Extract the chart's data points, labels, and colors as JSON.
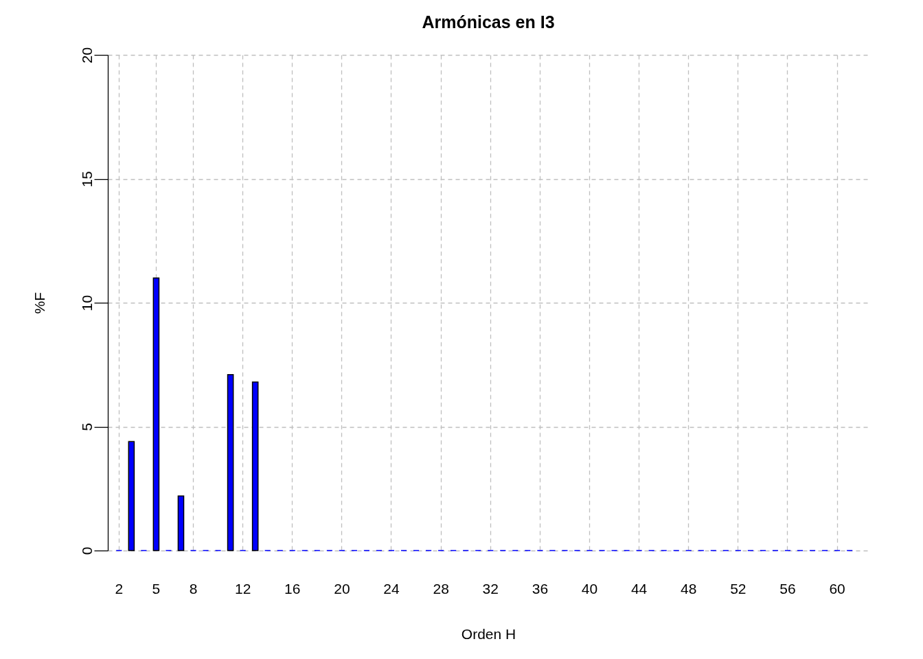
{
  "chart_data": {
    "type": "bar",
    "title": "Armónicas en I3",
    "xlabel": "Orden H",
    "ylabel": "%F",
    "categories": [
      "2",
      null,
      null,
      "5",
      null,
      null,
      "8",
      null,
      null,
      null,
      "12",
      null,
      null,
      null,
      "16",
      null,
      null,
      null,
      "20",
      null,
      null,
      null,
      "24",
      null,
      null,
      null,
      "28",
      null,
      null,
      null,
      "32",
      null,
      null,
      null,
      "36",
      null,
      null,
      null,
      "40",
      null,
      null,
      null,
      "44",
      null,
      null,
      null,
      "48",
      null,
      null,
      null,
      "52",
      null,
      null,
      null,
      "56",
      null,
      null,
      null,
      "60",
      null
    ],
    "values": [
      0,
      4.4,
      0,
      11.0,
      0,
      2.2,
      0,
      0,
      0,
      7.1,
      0,
      6.8,
      0,
      0,
      0,
      0,
      0,
      0,
      0,
      0,
      0,
      0,
      0,
      0,
      0,
      0,
      0,
      0,
      0,
      0,
      0,
      0,
      0,
      0,
      0,
      0,
      0,
      0,
      0,
      0,
      0,
      0,
      0,
      0,
      0,
      0,
      0,
      0,
      0,
      0,
      0,
      0,
      0,
      0,
      0,
      0,
      0,
      0,
      0,
      0
    ],
    "color": "#0000ff",
    "ylim": [
      0,
      20
    ],
    "yticks": [
      0,
      5,
      10,
      15,
      20
    ],
    "grid": true
  }
}
